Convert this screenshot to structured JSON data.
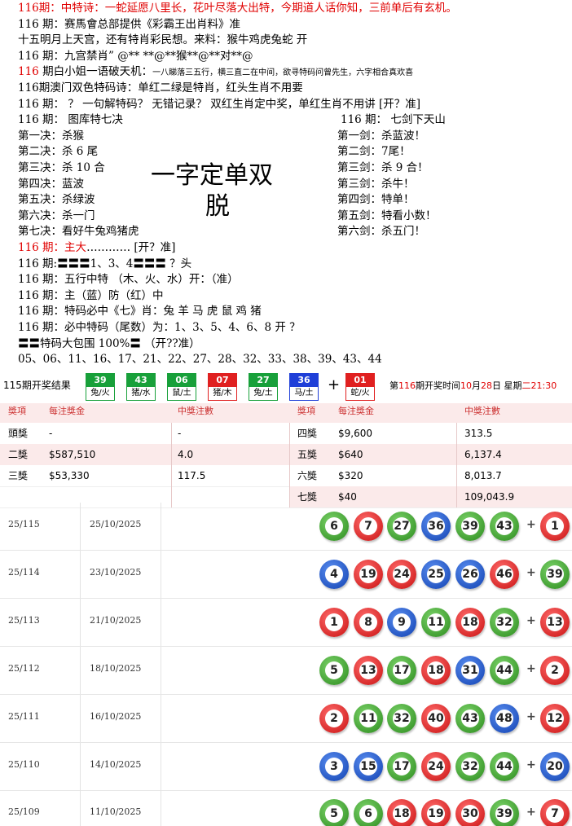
{
  "intro_lines": [
    [
      {
        "text": "116期：中特诗：一蛇延愿八里长，花叶尽落大出特，今期道人话你知，三前单后有玄机。",
        "style": "red"
      }
    ],
    [
      {
        "text": "116 期：赛馬會总部提供《彩霸王出肖料》准"
      }
    ],
    [
      {
        "text": "十五明月上天宫，还有特肖彩民想。来料：猴牛鸡虎兔蛇 开"
      }
    ],
    [
      {
        "text": "116 期：九宫禁肖” @** **@**猴**@**对**@"
      }
    ],
    [
      {
        "text": "116",
        "style": "red"
      },
      {
        "text": " 期白小姐一语破天机："
      },
      {
        "text": "一八睇落三五行，横三直二在中间，欲寻特码问曾先生，六字相合真欢喜",
        "style": "small"
      }
    ],
    [
      {
        "text": "116期澳门双色特码诗：单红二绿是特肖，红头生肖不用要"
      }
    ],
    [
      {
        "text": "116 期： ？ 一句解特码？ 无错记录？ 双红生肖定中奖，单红生肖不用讲 [开？准]"
      }
    ]
  ],
  "columns": {
    "left": [
      "116 期：        图库特七决",
      "第一决：杀猴",
      "第二决：杀 6 尾",
      "第三决：杀 10 合",
      "第四决：蓝波",
      "第五决：杀绿波",
      "第六决：杀一门",
      "第七决：看好牛兔鸡猪虎"
    ],
    "right": [
      "116 期：   七剑下天山",
      "第一剑：杀蓝波！",
      "第二剑：7尾！",
      "第三剑：杀 9 合！",
      "第三剑：杀牛！",
      "第四剑：特单！",
      "第五剑：特看小数！",
      "第六剑：杀五门！"
    ]
  },
  "overlay": [
    "一字定单双",
    "脱"
  ],
  "tips": [
    [
      {
        "text": "116 期：主大",
        "style": "red"
      },
      {
        "text": "………… [开？准]"
      }
    ],
    [
      {
        "text": "116 期:〓〓〓1、3、4〓〓〓 ？头"
      }
    ],
    [
      {
        "text": "116 期：五行中特  （木、火、水）开：（准）"
      }
    ],
    [
      {
        "text": "116 期：主（蓝）防（红）中"
      }
    ],
    [
      {
        "text": "116 期：特码必中《七》肖：兔 羊 马 虎 鼠 鸡 猪"
      }
    ],
    [
      {
        "text": "116 期：必中特码（尾数）为：1、3、5、4、6、8    开 ？"
      }
    ],
    [
      {
        "text": "〓〓特码大包围 100%〓 （开??准）"
      }
    ],
    [
      {
        "text": "05、06、11、16、17、21、22、27、28、32、33、38、39、43、44"
      }
    ]
  ],
  "result_bar": {
    "title": "115期开奖结果",
    "balls": [
      {
        "number": "39",
        "label": "兔/火",
        "color": "green"
      },
      {
        "number": "43",
        "label": "猪/水",
        "color": "green"
      },
      {
        "number": "06",
        "label": "鼠/土",
        "color": "green"
      },
      {
        "number": "07",
        "label": "猪/木",
        "color": "red"
      },
      {
        "number": "27",
        "label": "兔/土",
        "color": "green"
      },
      {
        "number": "36",
        "label": "马/土",
        "color": "blue"
      }
    ],
    "plus": "+",
    "special": {
      "number": "01",
      "label": "蛇/火",
      "color": "red"
    },
    "next_draw": [
      {
        "text": "第"
      },
      {
        "text": "116",
        "style": "red"
      },
      {
        "text": "期开奖时间"
      },
      {
        "text": "10",
        "style": "red"
      },
      {
        "text": "月"
      },
      {
        "text": "28",
        "style": "red"
      },
      {
        "text": "日 星期"
      },
      {
        "text": "二21:30",
        "style": "red"
      }
    ]
  },
  "prize_table": {
    "headers": [
      "獎項",
      "每注獎金",
      "中獎注數",
      "獎項",
      "每注獎金",
      "中獎注數"
    ],
    "rows": [
      {
        "left": [
          "頭獎",
          "-",
          "-"
        ],
        "right": [
          "四獎",
          "$9,600",
          "313.5"
        ]
      },
      {
        "left": [
          "二獎",
          "$587,510",
          "4.0"
        ],
        "right": [
          "五獎",
          "$640",
          "6,137.4"
        ]
      },
      {
        "left": [
          "三獎",
          "$53,330",
          "117.5"
        ],
        "right": [
          "六獎",
          "$320",
          "8,013.7"
        ]
      },
      {
        "right": [
          "七獎",
          "$40",
          "109,043.9"
        ]
      }
    ]
  },
  "history_plus": "+",
  "history": [
    {
      "period": "25/115",
      "date": "25/10/2025",
      "numbers": [
        "6",
        "7",
        "27",
        "36",
        "39",
        "43"
      ],
      "colors": [
        "green",
        "red",
        "green",
        "blue",
        "green",
        "green"
      ],
      "special": "1",
      "special_color": "red"
    },
    {
      "period": "25/114",
      "date": "23/10/2025",
      "numbers": [
        "4",
        "19",
        "24",
        "25",
        "26",
        "46"
      ],
      "colors": [
        "blue",
        "red",
        "red",
        "blue",
        "blue",
        "red"
      ],
      "special": "39",
      "special_color": "green"
    },
    {
      "period": "25/113",
      "date": "21/10/2025",
      "numbers": [
        "1",
        "8",
        "9",
        "11",
        "18",
        "32"
      ],
      "colors": [
        "red",
        "red",
        "blue",
        "green",
        "red",
        "green"
      ],
      "special": "13",
      "special_color": "red"
    },
    {
      "period": "25/112",
      "date": "18/10/2025",
      "numbers": [
        "5",
        "13",
        "17",
        "18",
        "31",
        "44"
      ],
      "colors": [
        "green",
        "red",
        "green",
        "red",
        "blue",
        "green"
      ],
      "special": "2",
      "special_color": "red"
    },
    {
      "period": "25/111",
      "date": "16/10/2025",
      "numbers": [
        "2",
        "11",
        "32",
        "40",
        "43",
        "48"
      ],
      "colors": [
        "red",
        "green",
        "green",
        "red",
        "green",
        "blue"
      ],
      "special": "12",
      "special_color": "red"
    },
    {
      "period": "25/110",
      "date": "14/10/2025",
      "numbers": [
        "3",
        "15",
        "17",
        "24",
        "32",
        "44"
      ],
      "colors": [
        "blue",
        "blue",
        "green",
        "red",
        "green",
        "green"
      ],
      "special": "20",
      "special_color": "blue"
    },
    {
      "period": "25/109",
      "date": "11/10/2025",
      "numbers": [
        "5",
        "6",
        "18",
        "19",
        "30",
        "39"
      ],
      "colors": [
        "green",
        "green",
        "red",
        "red",
        "red",
        "green"
      ],
      "special": "7",
      "special_color": "red"
    }
  ]
}
